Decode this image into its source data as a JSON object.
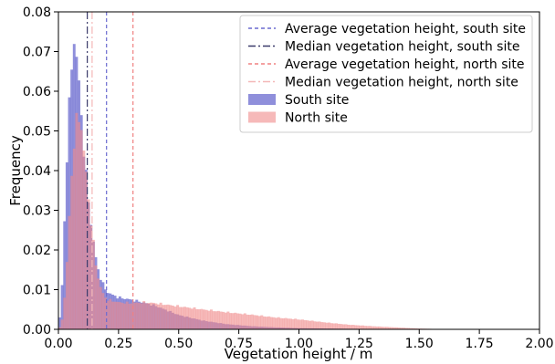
{
  "chart_data": {
    "type": "histogram",
    "title": "",
    "xlabel": "Vegetation height / m",
    "ylabel": "Frequency",
    "xlim": [
      0.0,
      2.0
    ],
    "ylim": [
      0.0,
      0.08
    ],
    "xticks": [
      "0.00",
      "0.25",
      "0.50",
      "0.75",
      "1.00",
      "1.25",
      "1.50",
      "1.75",
      "2.00"
    ],
    "yticks": [
      "0.00",
      "0.01",
      "0.02",
      "0.03",
      "0.04",
      "0.05",
      "0.06",
      "0.07",
      "0.08"
    ],
    "bin_width": 0.01,
    "grid": false,
    "legend_position": "top-right",
    "series": [
      {
        "name": "South site",
        "color": "#6a6acf",
        "opacity": 0.75,
        "profile": [
          [
            0.0,
            0.0
          ],
          [
            0.01,
            0.006
          ],
          [
            0.02,
            0.016
          ],
          [
            0.03,
            0.038
          ],
          [
            0.04,
            0.05
          ],
          [
            0.05,
            0.062
          ],
          [
            0.06,
            0.07
          ],
          [
            0.065,
            0.073
          ],
          [
            0.07,
            0.071
          ],
          [
            0.08,
            0.066
          ],
          [
            0.09,
            0.058
          ],
          [
            0.1,
            0.049
          ],
          [
            0.12,
            0.035
          ],
          [
            0.14,
            0.024
          ],
          [
            0.16,
            0.016
          ],
          [
            0.18,
            0.012
          ],
          [
            0.2,
            0.0095
          ],
          [
            0.22,
            0.0088
          ],
          [
            0.25,
            0.008
          ],
          [
            0.3,
            0.0075
          ],
          [
            0.35,
            0.0068
          ],
          [
            0.4,
            0.006
          ],
          [
            0.45,
            0.0048
          ],
          [
            0.5,
            0.0036
          ],
          [
            0.6,
            0.0022
          ],
          [
            0.7,
            0.0013
          ],
          [
            0.8,
            0.0008
          ],
          [
            0.9,
            0.0005
          ],
          [
            1.0,
            0.0003
          ],
          [
            1.2,
            0.00015
          ],
          [
            1.5,
            0.0
          ],
          [
            2.0,
            0.0
          ]
        ]
      },
      {
        "name": "North site",
        "color": "#f08a8a",
        "opacity": 0.6,
        "profile": [
          [
            0.0,
            0.0
          ],
          [
            0.01,
            0.001
          ],
          [
            0.02,
            0.004
          ],
          [
            0.03,
            0.012
          ],
          [
            0.04,
            0.022
          ],
          [
            0.05,
            0.034
          ],
          [
            0.06,
            0.044
          ],
          [
            0.07,
            0.05
          ],
          [
            0.08,
            0.054
          ],
          [
            0.09,
            0.053
          ],
          [
            0.1,
            0.048
          ],
          [
            0.12,
            0.036
          ],
          [
            0.14,
            0.024
          ],
          [
            0.16,
            0.014
          ],
          [
            0.18,
            0.0095
          ],
          [
            0.2,
            0.0075
          ],
          [
            0.25,
            0.0068
          ],
          [
            0.3,
            0.0066
          ],
          [
            0.35,
            0.0068
          ],
          [
            0.4,
            0.0066
          ],
          [
            0.45,
            0.0062
          ],
          [
            0.5,
            0.0058
          ],
          [
            0.6,
            0.005
          ],
          [
            0.7,
            0.0043
          ],
          [
            0.8,
            0.0037
          ],
          [
            0.9,
            0.003
          ],
          [
            1.0,
            0.0025
          ],
          [
            1.1,
            0.0018
          ],
          [
            1.2,
            0.0012
          ],
          [
            1.3,
            0.0008
          ],
          [
            1.4,
            0.0005
          ],
          [
            1.5,
            0.0002
          ],
          [
            1.6,
            5e-05
          ],
          [
            1.7,
            0.0
          ],
          [
            2.0,
            0.0
          ]
        ]
      }
    ],
    "vlines": [
      {
        "label": "Average vegetation height, south site",
        "x": 0.2,
        "color": "#6a6acf",
        "dash": "4,3"
      },
      {
        "label": "Median vegetation height, south site",
        "x": 0.12,
        "color": "#3a3a6a",
        "dash": "8,3,2,3"
      },
      {
        "label": "Average vegetation height, north site",
        "x": 0.31,
        "color": "#f08080",
        "dash": "4,3"
      },
      {
        "label": "Median vegetation height, north site",
        "x": 0.14,
        "color": "#f4b8b8",
        "dash": "8,3,2,3"
      }
    ]
  }
}
